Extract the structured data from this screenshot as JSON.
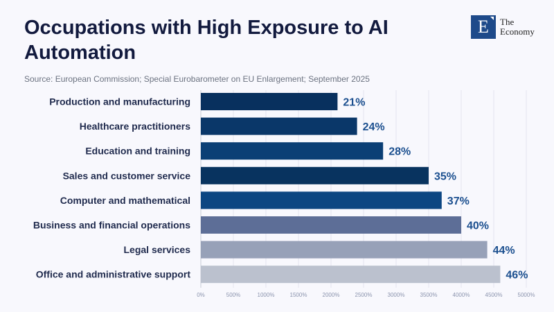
{
  "header": {
    "title": "Occupations with High Exposure to AI Automation",
    "source": "Source: European Commission; Special Eurobarometer on EU Enlargement; September 2025"
  },
  "logo": {
    "mark": "E",
    "line1": "The",
    "line2": "Economy"
  },
  "chart_data": {
    "type": "bar",
    "orientation": "horizontal",
    "title": "Occupations with High Exposure to AI Automation",
    "categories": [
      "Production and manufacturing",
      "Healthcare practitioners",
      "Education and training",
      "Sales and customer service",
      "Computer and mathematical",
      "Business and financial operations",
      "Legal services",
      "Office and administrative support"
    ],
    "values": [
      21,
      24,
      28,
      35,
      37,
      40,
      44,
      46
    ],
    "value_labels": [
      "21%",
      "24%",
      "28%",
      "35%",
      "37%",
      "40%",
      "44%",
      "46%"
    ],
    "bar_colors": [
      "#08305e",
      "#0a3769",
      "#0b3f75",
      "#08335f",
      "#0c4682",
      "#5d6e97",
      "#97a1b8",
      "#bbc1ce"
    ],
    "xlim": [
      0,
      5000
    ],
    "value_scale": 100,
    "xticks": [
      0,
      500,
      1000,
      1500,
      2000,
      2500,
      3000,
      3500,
      4000,
      4500,
      5000
    ],
    "xtick_labels": [
      "0%",
      "500%",
      "1000%",
      "1500%",
      "2000%",
      "2500%",
      "3000%",
      "3500%",
      "4000%",
      "4500%",
      "5000%"
    ],
    "grid": true,
    "xlabel": "",
    "ylabel": ""
  }
}
